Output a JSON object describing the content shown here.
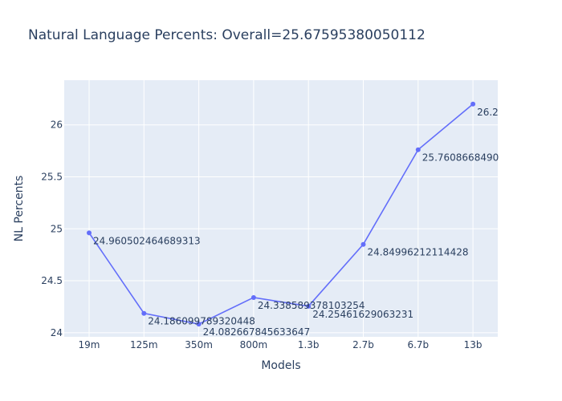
{
  "chart_data": {
    "type": "line",
    "title": "Natural Language Percents: Overall=25.67595380050112",
    "xlabel": "Models",
    "ylabel": "NL Percents",
    "categories": [
      "19m",
      "125m",
      "350m",
      "800m",
      "1.3b",
      "2.7b",
      "6.7b",
      "13b"
    ],
    "series": [
      {
        "values": [
          24.960502464689313,
          24.186099789320448,
          24.082667845633647,
          24.338589378103254,
          24.25461629063231,
          24.84996212114428,
          25.760866849,
          26.2
        ],
        "labels": [
          "24.960502464689313",
          "24.186099789320448",
          "24.082667845633647",
          "24.338589378103254",
          "24.25461629063231",
          "24.84996212114428",
          "25.7608668490",
          "26.2"
        ],
        "color": "#636efa"
      }
    ],
    "y_ticks": [
      "24",
      "24.5",
      "25",
      "25.5",
      "26"
    ],
    "ylim": [
      23.96,
      26.43
    ],
    "grid": true,
    "plot_background": "#e5ecf6"
  }
}
